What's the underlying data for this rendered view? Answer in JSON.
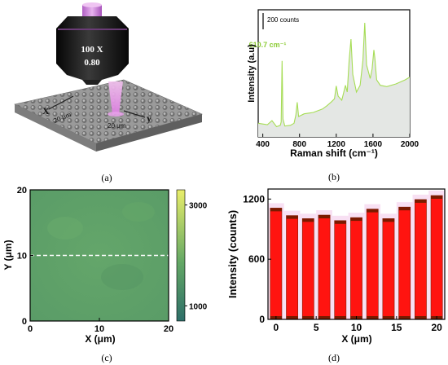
{
  "figure": {
    "panel_labels": [
      "(a)",
      "(b)",
      "(c)",
      "(d)"
    ]
  },
  "panel_a": {
    "objective_magnification": "100 X",
    "objective_na": "0.80",
    "axis_x_label": "X",
    "axis_y_label": "y",
    "dim_x": "20 μm",
    "dim_y": "20 μm",
    "colors": {
      "objective_body": "#1c1c1c",
      "objective_top": "#c777d6",
      "beam": "#e79be6",
      "substrate": "#8e8e8e"
    }
  },
  "chart_data": [
    {
      "panel": "b",
      "type": "line",
      "xlabel": "Raman shift (cm⁻¹)",
      "ylabel": "Intensity (a.u)",
      "scale_bar_label": "200 counts",
      "annotation": "610.7 cm⁻¹",
      "annotation_x": 610.7,
      "xlim": [
        350,
        2000
      ],
      "xticks": [
        400,
        800,
        1200,
        1600,
        2000
      ],
      "yticks_shown": false,
      "line_color": "#a6dd55",
      "fill_color": "#e4e7e4",
      "x": [
        350,
        400,
        450,
        500,
        550,
        590,
        600,
        610,
        620,
        640,
        700,
        740,
        760,
        775,
        790,
        850,
        950,
        1050,
        1100,
        1150,
        1180,
        1200,
        1220,
        1260,
        1300,
        1320,
        1340,
        1360,
        1380,
        1420,
        1460,
        1490,
        1510,
        1530,
        1570,
        1590,
        1610,
        1620,
        1640,
        1680,
        1750,
        1850,
        1950,
        2000
      ],
      "y": [
        100,
        95,
        90,
        120,
        75,
        85,
        110,
        560,
        130,
        80,
        85,
        100,
        160,
        255,
        150,
        170,
        180,
        205,
        230,
        260,
        280,
        375,
        300,
        270,
        380,
        330,
        560,
        720,
        460,
        330,
        380,
        560,
        840,
        530,
        430,
        500,
        640,
        580,
        420,
        380,
        370,
        390,
        420,
        440
      ]
    },
    {
      "panel": "c",
      "type": "heatmap",
      "xlabel": "X (μm)",
      "ylabel": "Y (μm)",
      "xlim": [
        0,
        20
      ],
      "ylim": [
        0,
        20
      ],
      "xticks": [
        0,
        10,
        20
      ],
      "yticks": [
        0,
        10,
        20
      ],
      "colorbar_ticks": [
        1000,
        3000
      ],
      "colorbar_range": [
        700,
        3300
      ],
      "map_color": "#5d9f67",
      "dashed_line_y": 10,
      "colors": {
        "cb_low": "#2e6f69",
        "cb_mid": "#64a865",
        "cb_high": "#e9ee6a"
      }
    },
    {
      "panel": "d",
      "type": "bar",
      "xlabel": "X (μm)",
      "ylabel": "Intensity (counts)",
      "xlim": [
        -1,
        21
      ],
      "ylim": [
        0,
        1300
      ],
      "xticks": [
        0,
        5,
        10,
        15,
        20
      ],
      "yticks": [
        0,
        600,
        1200
      ],
      "x": [
        0,
        2,
        4,
        6,
        8,
        10,
        12,
        14,
        16,
        18,
        20
      ],
      "values": [
        1110,
        1035,
        1005,
        1040,
        985,
        1015,
        1100,
        1005,
        1120,
        1195,
        1235
      ],
      "colors": {
        "bar": "#ff1410",
        "bar_edge": "#8a1a00",
        "bar_top": "#7a1a00",
        "halo": "#f2c6ea"
      }
    }
  ]
}
